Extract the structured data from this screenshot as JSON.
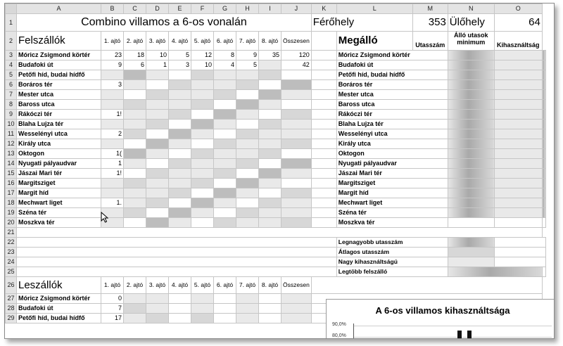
{
  "columns": [
    "A",
    "B",
    "C",
    "D",
    "E",
    "F",
    "G",
    "H",
    "I",
    "J",
    "K",
    "L",
    "M",
    "N",
    "O"
  ],
  "title": "Combino villamos a 6-os vonalán",
  "ferohely_label": "Férőhely",
  "ferohely_value": "353",
  "ulohely_label": "Ülőhely",
  "ulohely_value": "64",
  "felszallok_label": "Felszállók",
  "leszallok_label": "Leszállók",
  "door_headers": [
    "1. ajtó",
    "2. ajtó",
    "3. ajtó",
    "4. ajtó",
    "5. ajtó",
    "6. ajtó",
    "7. ajtó",
    "8. ajtó",
    "Összesen"
  ],
  "megallo_label": "Megálló",
  "utasszam_label": "Utasszám",
  "allo_label": "Álló utasok minimum",
  "kihasznaltsag_label": "Kihasználtság",
  "stops": [
    "Móricz Zsigmond körtér",
    "Budafoki út",
    "Petőfi híd, budai hídfő",
    "Boráros tér",
    "Mester utca",
    "Baross utca",
    "Rákóczi tér",
    "Blaha Lujza tér",
    "Wesselényi utca",
    "Király utca",
    "Oktogon",
    "Nyugati pályaudvar",
    "Jászai Mari tér",
    "Margitsziget",
    "Margit híd",
    "Mechwart liget",
    "Széna tér",
    "Moszkva tér"
  ],
  "row3_values": [
    "23",
    "18",
    "10",
    "5",
    "12",
    "8",
    "9",
    "35",
    "120"
  ],
  "row4_partial": {
    "b": "9",
    "c": "6",
    "d": "1",
    "e": "3",
    "f": "10",
    "g": "4",
    "h": "5",
    "i": "42"
  },
  "partial_b": {
    "row6": "3",
    "row9": "1!",
    "row11": "2",
    "row13": "1(",
    "row14": "1",
    "row15": "1!",
    "row18": "1."
  },
  "summary_labels": [
    "Legnagyobb utasszám",
    "Átlagos utasszám",
    "Nagy kihasználtságú",
    "Legtöbb felszálló"
  ],
  "leszallok_rows": [
    {
      "stop": "Móricz Zsigmond körtér",
      "b": "0"
    },
    {
      "stop": "Budafoki út",
      "b": "7"
    },
    {
      "stop": "Petőfi híd, budai hídfő",
      "b": "17"
    }
  ],
  "chart": {
    "title": "A 6-os villamos kihasználtsága",
    "y_ticks": [
      "90,0%",
      "80,0%"
    ]
  },
  "row_numbers": [
    "1",
    "2",
    "3",
    "4",
    "5",
    "6",
    "7",
    "8",
    "9",
    "10",
    "11",
    "12",
    "13",
    "14",
    "15",
    "16",
    "17",
    "18",
    "19",
    "20",
    "21",
    "22",
    "23",
    "24",
    "25",
    "26",
    "27",
    "28",
    "29"
  ]
}
